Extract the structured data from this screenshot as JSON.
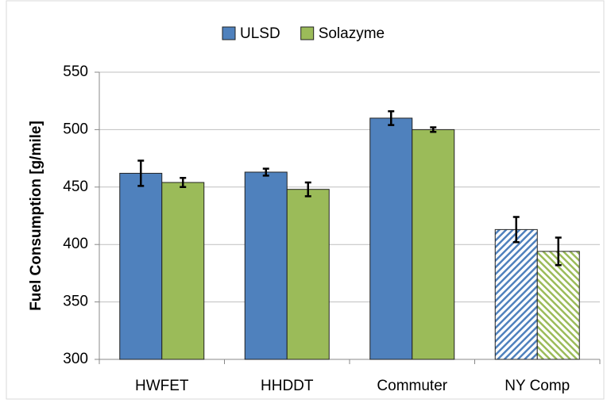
{
  "chart_data": {
    "type": "bar",
    "ylabel": "Fuel Consumption [g/mile]",
    "categories": [
      "HWFET",
      "HHDDT",
      "Commuter",
      "NY Comp"
    ],
    "hatch": [
      false,
      false,
      false,
      true
    ],
    "series": [
      {
        "name": "ULSD",
        "color": "#4f81bd",
        "values": [
          462,
          463,
          510,
          413
        ],
        "errors": [
          11,
          3,
          6,
          11
        ]
      },
      {
        "name": "Solazyme",
        "color": "#9bbb59",
        "values": [
          454,
          448,
          500,
          394
        ],
        "errors": [
          4,
          6,
          2,
          12
        ]
      }
    ],
    "ylim": [
      300,
      550
    ],
    "yticks": [
      300,
      350,
      400,
      450,
      500,
      550
    ],
    "grid": true,
    "legend": "top"
  }
}
